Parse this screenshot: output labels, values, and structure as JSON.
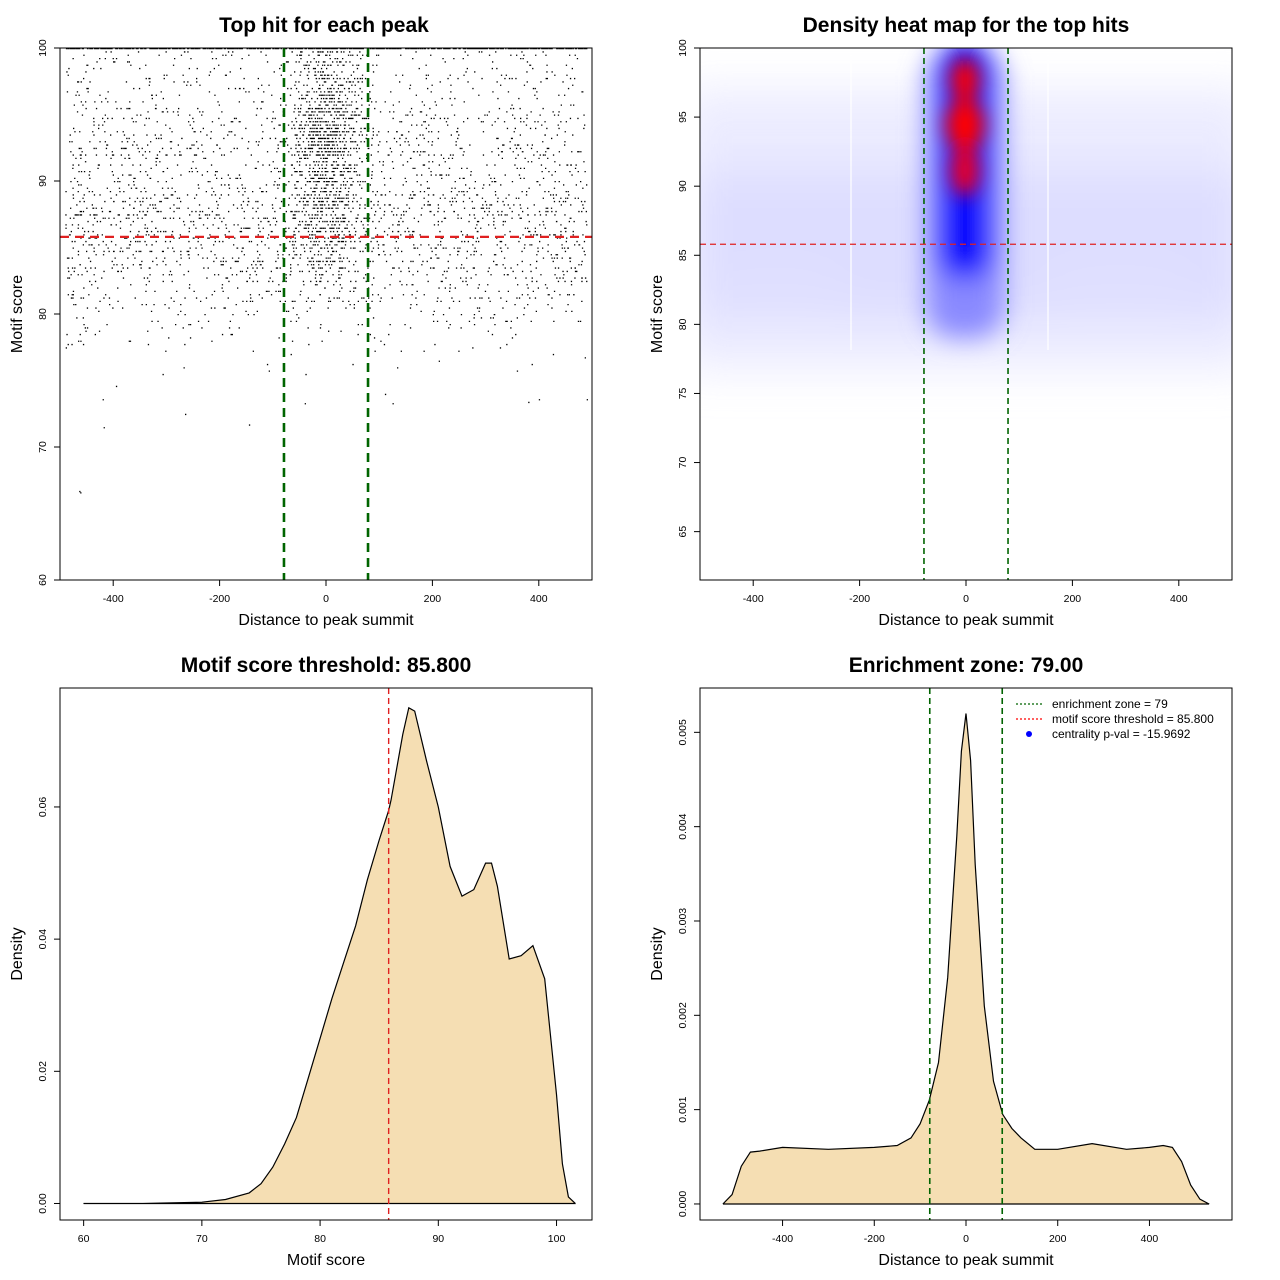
{
  "chart_data": [
    {
      "type": "scatter",
      "title": "Top hit for each peak",
      "xlabel": "Distance to peak summit",
      "ylabel": "Motif score",
      "xlim": [
        -500,
        500
      ],
      "ylim": [
        60,
        100
      ],
      "x_ticks": [
        -400,
        -200,
        0,
        200,
        400
      ],
      "y_ticks": [
        60,
        70,
        80,
        90,
        100
      ],
      "vlines": [
        -79,
        79
      ],
      "hline": 85.8,
      "points_description": "dense cloud of thousands of top hits, concentrated near distance 0 with high motif scores (85-100); background points spread uniformly from -490 to 490 with scores mostly 77-100; a few outliers near 66.7-75"
    },
    {
      "type": "heatmap",
      "title": "Density heat map for the top hits",
      "xlabel": "Distance to peak summit",
      "ylabel": "Motif score",
      "xlim": [
        -500,
        500
      ],
      "ylim": [
        61.5,
        100
      ],
      "x_ticks": [
        -400,
        -200,
        0,
        200,
        400
      ],
      "y_ticks": [
        65,
        70,
        75,
        80,
        85,
        90,
        95,
        100
      ],
      "vlines": [
        -79,
        79
      ],
      "hline": 85.8,
      "colors": [
        "#ffffff",
        "#0000ff",
        "#ff0000"
      ],
      "hotspot": {
        "x": 0,
        "y_range": [
          86,
          99
        ],
        "peak_y": 95
      }
    },
    {
      "type": "area",
      "title": "Motif score threshold: 85.800",
      "xlabel": "Motif score",
      "ylabel": "Density",
      "xlim": [
        58,
        103
      ],
      "ylim": [
        -0.0025,
        0.078
      ],
      "x_ticks": [
        60,
        70,
        80,
        90,
        100
      ],
      "y_ticks": [
        0.0,
        0.02,
        0.04,
        0.06
      ],
      "y_tick_labels": [
        "0.00",
        "0.02",
        "0.04",
        "0.06"
      ],
      "vline": 85.8,
      "x": [
        60,
        65,
        70,
        72,
        74,
        75,
        76,
        77,
        78,
        79,
        80,
        81,
        82,
        83,
        84,
        85,
        85.8,
        86,
        87,
        87.5,
        88,
        89,
        90,
        91,
        92,
        93,
        94,
        94.5,
        95,
        96,
        97,
        98,
        99,
        100,
        100.5,
        101,
        101.6
      ],
      "y": [
        0,
        0,
        0.0002,
        0.0006,
        0.0016,
        0.003,
        0.0055,
        0.009,
        0.013,
        0.019,
        0.025,
        0.031,
        0.0365,
        0.042,
        0.049,
        0.055,
        0.0595,
        0.061,
        0.071,
        0.075,
        0.0745,
        0.067,
        0.06,
        0.051,
        0.0465,
        0.0475,
        0.0515,
        0.0515,
        0.048,
        0.037,
        0.0375,
        0.039,
        0.034,
        0.0165,
        0.006,
        0.001,
        0
      ]
    },
    {
      "type": "area",
      "title": "Enrichment zone: 79.00",
      "xlabel": "Distance to peak summit",
      "ylabel": "Density",
      "xlim": [
        -580,
        580
      ],
      "ylim": [
        -0.00017,
        0.00547
      ],
      "x_ticks": [
        -400,
        -200,
        0,
        200,
        400
      ],
      "y_ticks": [
        0.0,
        0.001,
        0.002,
        0.003,
        0.004,
        0.005
      ],
      "y_tick_labels": [
        "0.000",
        "0.001",
        "0.002",
        "0.003",
        "0.004",
        "0.005"
      ],
      "vlines": [
        -79,
        79
      ],
      "x": [
        -530,
        -510,
        -490,
        -470,
        -450,
        -400,
        -300,
        -200,
        -150,
        -120,
        -100,
        -80,
        -60,
        -40,
        -20,
        -10,
        0,
        10,
        20,
        40,
        60,
        80,
        100,
        120,
        150,
        200,
        275,
        350,
        400,
        430,
        450,
        470,
        490,
        510,
        530
      ],
      "y": [
        0,
        0.0001,
        0.0004,
        0.00055,
        0.00056,
        0.0006,
        0.00058,
        0.0006,
        0.00062,
        0.0007,
        0.00085,
        0.0011,
        0.0015,
        0.0024,
        0.0039,
        0.0048,
        0.0052,
        0.0047,
        0.0036,
        0.0021,
        0.0013,
        0.00095,
        0.0008,
        0.0007,
        0.00058,
        0.00058,
        0.00064,
        0.00058,
        0.0006,
        0.00062,
        0.0006,
        0.00045,
        0.0002,
        5e-05,
        0
      ],
      "legend": [
        {
          "label": "enrichment zone = 79",
          "style": "dotted",
          "color": "#006400"
        },
        {
          "label": "motif score threshold = 85.800",
          "style": "dotted",
          "color": "#ff0000"
        },
        {
          "label": "centrality p-val = -15.9692",
          "style": "point",
          "color": "#0000ff"
        }
      ],
      "legend_position": "top-right"
    }
  ]
}
